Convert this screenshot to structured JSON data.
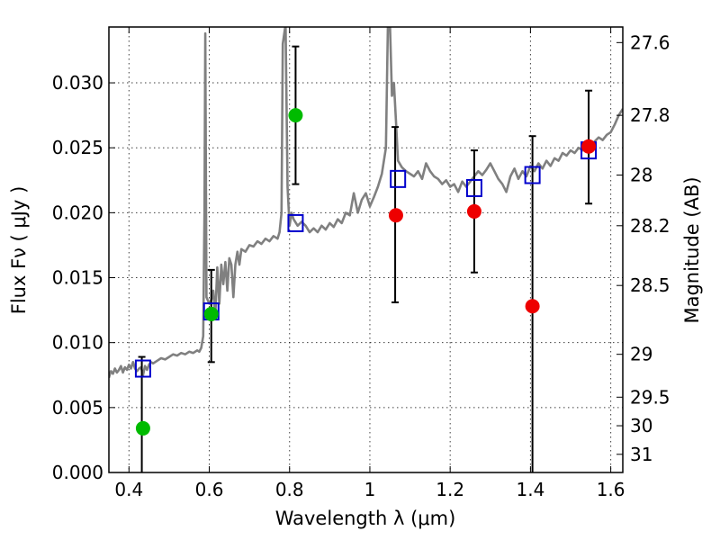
{
  "chart_data": {
    "type": "scatter",
    "xlabel": "Wavelength  λ (μm)",
    "ylabel": "Flux  Fν  ( μJy )",
    "y2label": "Magnitude (AB)",
    "xlim": [
      0.35,
      1.63
    ],
    "ylim": [
      0.0,
      0.0343
    ],
    "grid": true,
    "x_ticks": [
      0.4,
      0.6,
      0.8,
      1.0,
      1.2,
      1.4,
      1.6
    ],
    "x_tick_labels": [
      "0.4",
      "0.6",
      "0.8",
      "1",
      "1.2",
      "1.4",
      "1.6"
    ],
    "y_ticks": [
      0.0,
      0.005,
      0.01,
      0.015,
      0.02,
      0.025,
      0.03
    ],
    "y_tick_labels": [
      "0.000",
      "0.005",
      "0.010",
      "0.015",
      "0.020",
      "0.025",
      "0.030"
    ],
    "magnitude_ticks": [
      {
        "label": "27.6",
        "flux": 0.0331
      },
      {
        "label": "27.8",
        "flux": 0.0275
      },
      {
        "label": "28",
        "flux": 0.0229
      },
      {
        "label": "28.2",
        "flux": 0.019
      },
      {
        "label": "28.5",
        "flux": 0.0144
      },
      {
        "label": "29",
        "flux": 0.0091
      },
      {
        "label": "29.5",
        "flux": 0.0058
      },
      {
        "label": "30",
        "flux": 0.0036
      },
      {
        "label": "31",
        "flux": 0.0014
      }
    ],
    "colors": {
      "spectrum": "#808080",
      "detection": "#00bb00",
      "upper_limit": "#ee0000",
      "model": "#0000cc",
      "errorbar": "#000000"
    },
    "series": [
      {
        "marker": "line",
        "points": [
          [
            0.35,
            0.0073
          ],
          [
            0.355,
            0.0078
          ],
          [
            0.36,
            0.0076
          ],
          [
            0.365,
            0.008
          ],
          [
            0.37,
            0.0077
          ],
          [
            0.375,
            0.0079
          ],
          [
            0.38,
            0.0082
          ],
          [
            0.385,
            0.0077
          ],
          [
            0.39,
            0.0081
          ],
          [
            0.395,
            0.0079
          ],
          [
            0.4,
            0.0083
          ],
          [
            0.405,
            0.008
          ],
          [
            0.41,
            0.0085
          ],
          [
            0.415,
            0.008
          ],
          [
            0.42,
            0.0078
          ],
          [
            0.425,
            0.008
          ],
          [
            0.43,
            0.0081
          ],
          [
            0.435,
            0.0075
          ],
          [
            0.44,
            0.0082
          ],
          [
            0.445,
            0.0079
          ],
          [
            0.45,
            0.0083
          ],
          [
            0.455,
            0.0085
          ],
          [
            0.46,
            0.0084
          ],
          [
            0.47,
            0.0086
          ],
          [
            0.48,
            0.0088
          ],
          [
            0.49,
            0.0087
          ],
          [
            0.5,
            0.0089
          ],
          [
            0.51,
            0.0091
          ],
          [
            0.52,
            0.009
          ],
          [
            0.53,
            0.0092
          ],
          [
            0.54,
            0.0091
          ],
          [
            0.55,
            0.0093
          ],
          [
            0.56,
            0.0092
          ],
          [
            0.57,
            0.0094
          ],
          [
            0.575,
            0.0093
          ],
          [
            0.58,
            0.0096
          ],
          [
            0.585,
            0.0105
          ],
          [
            0.588,
            0.02
          ],
          [
            0.59,
            0.0338
          ],
          [
            0.593,
            0.0135
          ],
          [
            0.6,
            0.013
          ],
          [
            0.605,
            0.0133
          ],
          [
            0.61,
            0.014
          ],
          [
            0.615,
            0.012
          ],
          [
            0.62,
            0.0158
          ],
          [
            0.625,
            0.013
          ],
          [
            0.63,
            0.016
          ],
          [
            0.635,
            0.0145
          ],
          [
            0.64,
            0.0162
          ],
          [
            0.645,
            0.014
          ],
          [
            0.65,
            0.0165
          ],
          [
            0.655,
            0.016
          ],
          [
            0.66,
            0.0135
          ],
          [
            0.665,
            0.016
          ],
          [
            0.67,
            0.017
          ],
          [
            0.675,
            0.016
          ],
          [
            0.68,
            0.0172
          ],
          [
            0.69,
            0.017
          ],
          [
            0.7,
            0.0175
          ],
          [
            0.71,
            0.0174
          ],
          [
            0.72,
            0.0178
          ],
          [
            0.73,
            0.0176
          ],
          [
            0.74,
            0.018
          ],
          [
            0.75,
            0.0178
          ],
          [
            0.76,
            0.0182
          ],
          [
            0.77,
            0.018
          ],
          [
            0.775,
            0.0185
          ],
          [
            0.78,
            0.02
          ],
          [
            0.783,
            0.033
          ],
          [
            0.79,
            0.0345
          ],
          [
            0.795,
            0.022
          ],
          [
            0.8,
            0.019
          ],
          [
            0.805,
            0.02
          ],
          [
            0.81,
            0.0195
          ],
          [
            0.82,
            0.019
          ],
          [
            0.83,
            0.0193
          ],
          [
            0.84,
            0.019
          ],
          [
            0.85,
            0.0185
          ],
          [
            0.86,
            0.0188
          ],
          [
            0.87,
            0.0185
          ],
          [
            0.88,
            0.019
          ],
          [
            0.89,
            0.0187
          ],
          [
            0.9,
            0.0192
          ],
          [
            0.91,
            0.0189
          ],
          [
            0.92,
            0.0195
          ],
          [
            0.93,
            0.0192
          ],
          [
            0.94,
            0.02
          ],
          [
            0.95,
            0.0198
          ],
          [
            0.96,
            0.0215
          ],
          [
            0.97,
            0.02
          ],
          [
            0.98,
            0.021
          ],
          [
            0.99,
            0.0215
          ],
          [
            1.0,
            0.0205
          ],
          [
            1.01,
            0.0212
          ],
          [
            1.02,
            0.022
          ],
          [
            1.03,
            0.023
          ],
          [
            1.04,
            0.025
          ],
          [
            1.045,
            0.0345
          ],
          [
            1.05,
            0.0345
          ],
          [
            1.055,
            0.029
          ],
          [
            1.06,
            0.03
          ],
          [
            1.065,
            0.027
          ],
          [
            1.07,
            0.024
          ],
          [
            1.08,
            0.0235
          ],
          [
            1.09,
            0.0232
          ],
          [
            1.1,
            0.023
          ],
          [
            1.11,
            0.0228
          ],
          [
            1.12,
            0.0232
          ],
          [
            1.13,
            0.0226
          ],
          [
            1.14,
            0.0238
          ],
          [
            1.15,
            0.0232
          ],
          [
            1.16,
            0.0228
          ],
          [
            1.17,
            0.0226
          ],
          [
            1.18,
            0.0222
          ],
          [
            1.19,
            0.0225
          ],
          [
            1.2,
            0.022
          ],
          [
            1.21,
            0.0222
          ],
          [
            1.22,
            0.0216
          ],
          [
            1.23,
            0.0224
          ],
          [
            1.24,
            0.022
          ],
          [
            1.25,
            0.0224
          ],
          [
            1.26,
            0.0228
          ],
          [
            1.27,
            0.0232
          ],
          [
            1.28,
            0.0229
          ],
          [
            1.29,
            0.0233
          ],
          [
            1.3,
            0.0238
          ],
          [
            1.31,
            0.0232
          ],
          [
            1.32,
            0.0226
          ],
          [
            1.33,
            0.0222
          ],
          [
            1.34,
            0.0216
          ],
          [
            1.35,
            0.0228
          ],
          [
            1.36,
            0.0234
          ],
          [
            1.37,
            0.0226
          ],
          [
            1.38,
            0.0232
          ],
          [
            1.39,
            0.0228
          ],
          [
            1.4,
            0.0236
          ],
          [
            1.41,
            0.0232
          ],
          [
            1.42,
            0.0238
          ],
          [
            1.43,
            0.0234
          ],
          [
            1.44,
            0.024
          ],
          [
            1.45,
            0.0236
          ],
          [
            1.46,
            0.0242
          ],
          [
            1.47,
            0.024
          ],
          [
            1.48,
            0.0246
          ],
          [
            1.49,
            0.0244
          ],
          [
            1.5,
            0.0248
          ],
          [
            1.51,
            0.0246
          ],
          [
            1.52,
            0.025
          ],
          [
            1.53,
            0.0248
          ],
          [
            1.54,
            0.0252
          ],
          [
            1.55,
            0.025
          ],
          [
            1.56,
            0.0255
          ],
          [
            1.57,
            0.0258
          ],
          [
            1.58,
            0.0256
          ],
          [
            1.59,
            0.026
          ],
          [
            1.6,
            0.0262
          ],
          [
            1.61,
            0.0268
          ],
          [
            1.62,
            0.0275
          ],
          [
            1.63,
            0.028
          ]
        ]
      },
      {
        "marker": "square",
        "points": [
          [
            0.435,
            0.008
          ],
          [
            0.605,
            0.0124
          ],
          [
            0.815,
            0.0192
          ],
          [
            1.07,
            0.0226
          ],
          [
            1.26,
            0.0219
          ],
          [
            1.405,
            0.0229
          ],
          [
            1.545,
            0.0248
          ]
        ]
      },
      {
        "marker": "circle",
        "points": [
          [
            0.435,
            0.0034
          ],
          [
            0.605,
            0.0122
          ],
          [
            0.815,
            0.0275
          ]
        ]
      },
      {
        "marker": "circle",
        "points": [
          [
            1.065,
            0.0198
          ],
          [
            1.26,
            0.0201
          ],
          [
            1.405,
            0.0128
          ],
          [
            1.545,
            0.0251
          ]
        ]
      }
    ],
    "error_bars": [
      {
        "x": 0.432,
        "low": 0.0,
        "high": 0.0089
      },
      {
        "x": 0.605,
        "low": 0.0085,
        "high": 0.0156
      },
      {
        "x": 0.815,
        "low": 0.0222,
        "high": 0.0328
      },
      {
        "x": 1.063,
        "low": 0.0131,
        "high": 0.0266
      },
      {
        "x": 1.26,
        "low": 0.0154,
        "high": 0.0248
      },
      {
        "x": 1.405,
        "low": 0.0,
        "high": 0.0259
      },
      {
        "x": 1.545,
        "low": 0.0207,
        "high": 0.0294
      }
    ]
  }
}
